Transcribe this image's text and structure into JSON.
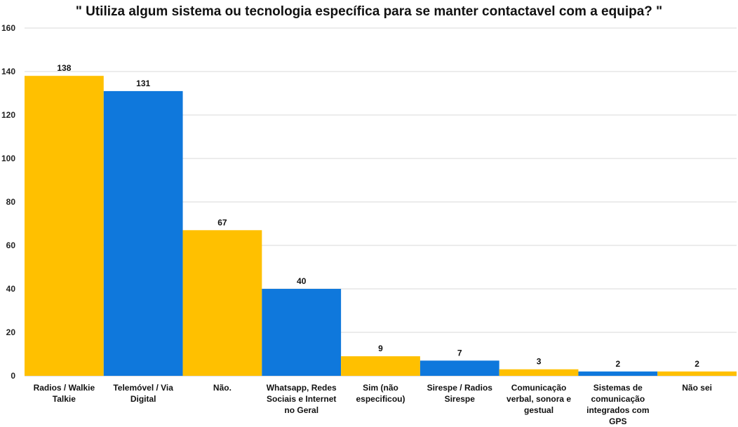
{
  "chart_data": {
    "type": "bar",
    "title": "\" Utiliza algum sistema ou tecnologia específica para se manter contactavel com a equipa? \"",
    "categories": [
      "Radios / Walkie Talkie",
      "Telemóvel / Via Digital",
      "Não.",
      "Whatsapp, Redes Sociais e Internet no Geral",
      "Sim (não especificou)",
      "Sirespe / Radios Sirespe",
      "Comunicação verbal, sonora e gestual",
      "Sistemas de comunicação integrados com GPS",
      "Não sei"
    ],
    "values": [
      138,
      131,
      67,
      40,
      9,
      7,
      3,
      2,
      2
    ],
    "bar_colors": [
      "#FFC000",
      "#0F78DC",
      "#FFC000",
      "#0F78DC",
      "#FFC000",
      "#0F78DC",
      "#FFC000",
      "#0F78DC",
      "#FFC000"
    ],
    "ylim": [
      0,
      160
    ],
    "yticks": [
      0,
      20,
      40,
      60,
      80,
      100,
      120,
      140,
      160
    ],
    "grid": true,
    "xlabel": "",
    "ylabel": ""
  }
}
